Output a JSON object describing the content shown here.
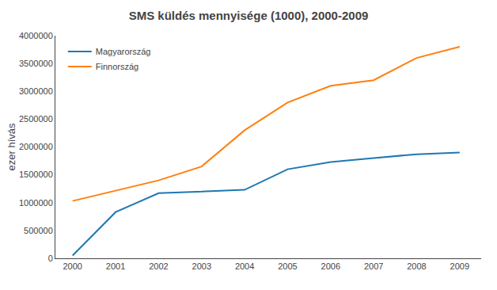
{
  "chart_data": {
    "type": "line",
    "title": "SMS küldés mennyisége (1000), 2000-2009",
    "ylabel": "ezer hívás",
    "x": [
      2000,
      2001,
      2002,
      2003,
      2004,
      2005,
      2006,
      2007,
      2008,
      2009
    ],
    "series": [
      {
        "name": "Magyarország",
        "values": [
          50000,
          830000,
          1170000,
          1200000,
          1230000,
          1600000,
          1730000,
          1800000,
          1870000,
          1900000
        ]
      },
      {
        "name": "Finnország",
        "values": [
          1030000,
          1220000,
          1400000,
          1650000,
          2300000,
          2800000,
          3100000,
          3200000,
          3600000,
          3800000
        ]
      }
    ],
    "xlim": [
      1999.6,
      2009.5
    ],
    "xticks": [
      2000,
      2001,
      2002,
      2003,
      2004,
      2005,
      2006,
      2007,
      2008,
      2009
    ],
    "ylim": [
      0,
      4000000
    ],
    "yticks": [
      0,
      500000,
      1000000,
      1500000,
      2000000,
      2500000,
      3000000,
      3500000,
      4000000
    ],
    "grid": false,
    "legend": "upper left"
  }
}
